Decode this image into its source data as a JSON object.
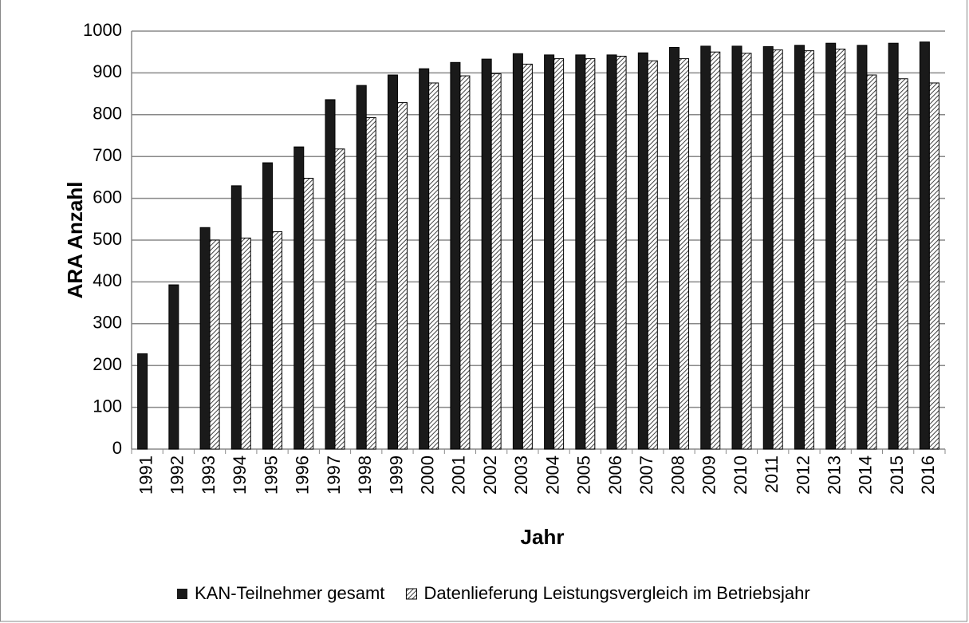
{
  "chart_data": {
    "type": "bar",
    "x_label": "Jahr",
    "y_label": "ARA Anzahl",
    "categories": [
      "1991",
      "1992",
      "1993",
      "1994",
      "1995",
      "1996",
      "1997",
      "1998",
      "1999",
      "2000",
      "2001",
      "2002",
      "2003",
      "2004",
      "2005",
      "2006",
      "2007",
      "2008",
      "2009",
      "2010",
      "2011",
      "2012",
      "2013",
      "2014",
      "2015",
      "2016"
    ],
    "series": [
      {
        "name": "KAN-Teilnehmer gesamt",
        "color": "#1a1a1a",
        "values": [
          228,
          393,
          530,
          630,
          685,
          723,
          836,
          870,
          895,
          910,
          925,
          933,
          946,
          943,
          943,
          943,
          948,
          961,
          964,
          964,
          963,
          966,
          971,
          966,
          971,
          974
        ]
      },
      {
        "name": "Datenlieferung Leistungsvergleich im Betriebsjahr",
        "color": "#404040",
        "values": [
          null,
          null,
          500,
          505,
          520,
          648,
          718,
          793,
          829,
          876,
          893,
          898,
          921,
          934,
          934,
          940,
          929,
          934,
          950,
          947,
          955,
          953,
          957,
          895,
          886,
          876
        ]
      }
    ],
    "ylim": [
      0,
      1000
    ],
    "yticks": [
      0,
      100,
      200,
      300,
      400,
      500,
      600,
      700,
      800,
      900,
      1000
    ],
    "grid": true,
    "legend": "bottom"
  }
}
